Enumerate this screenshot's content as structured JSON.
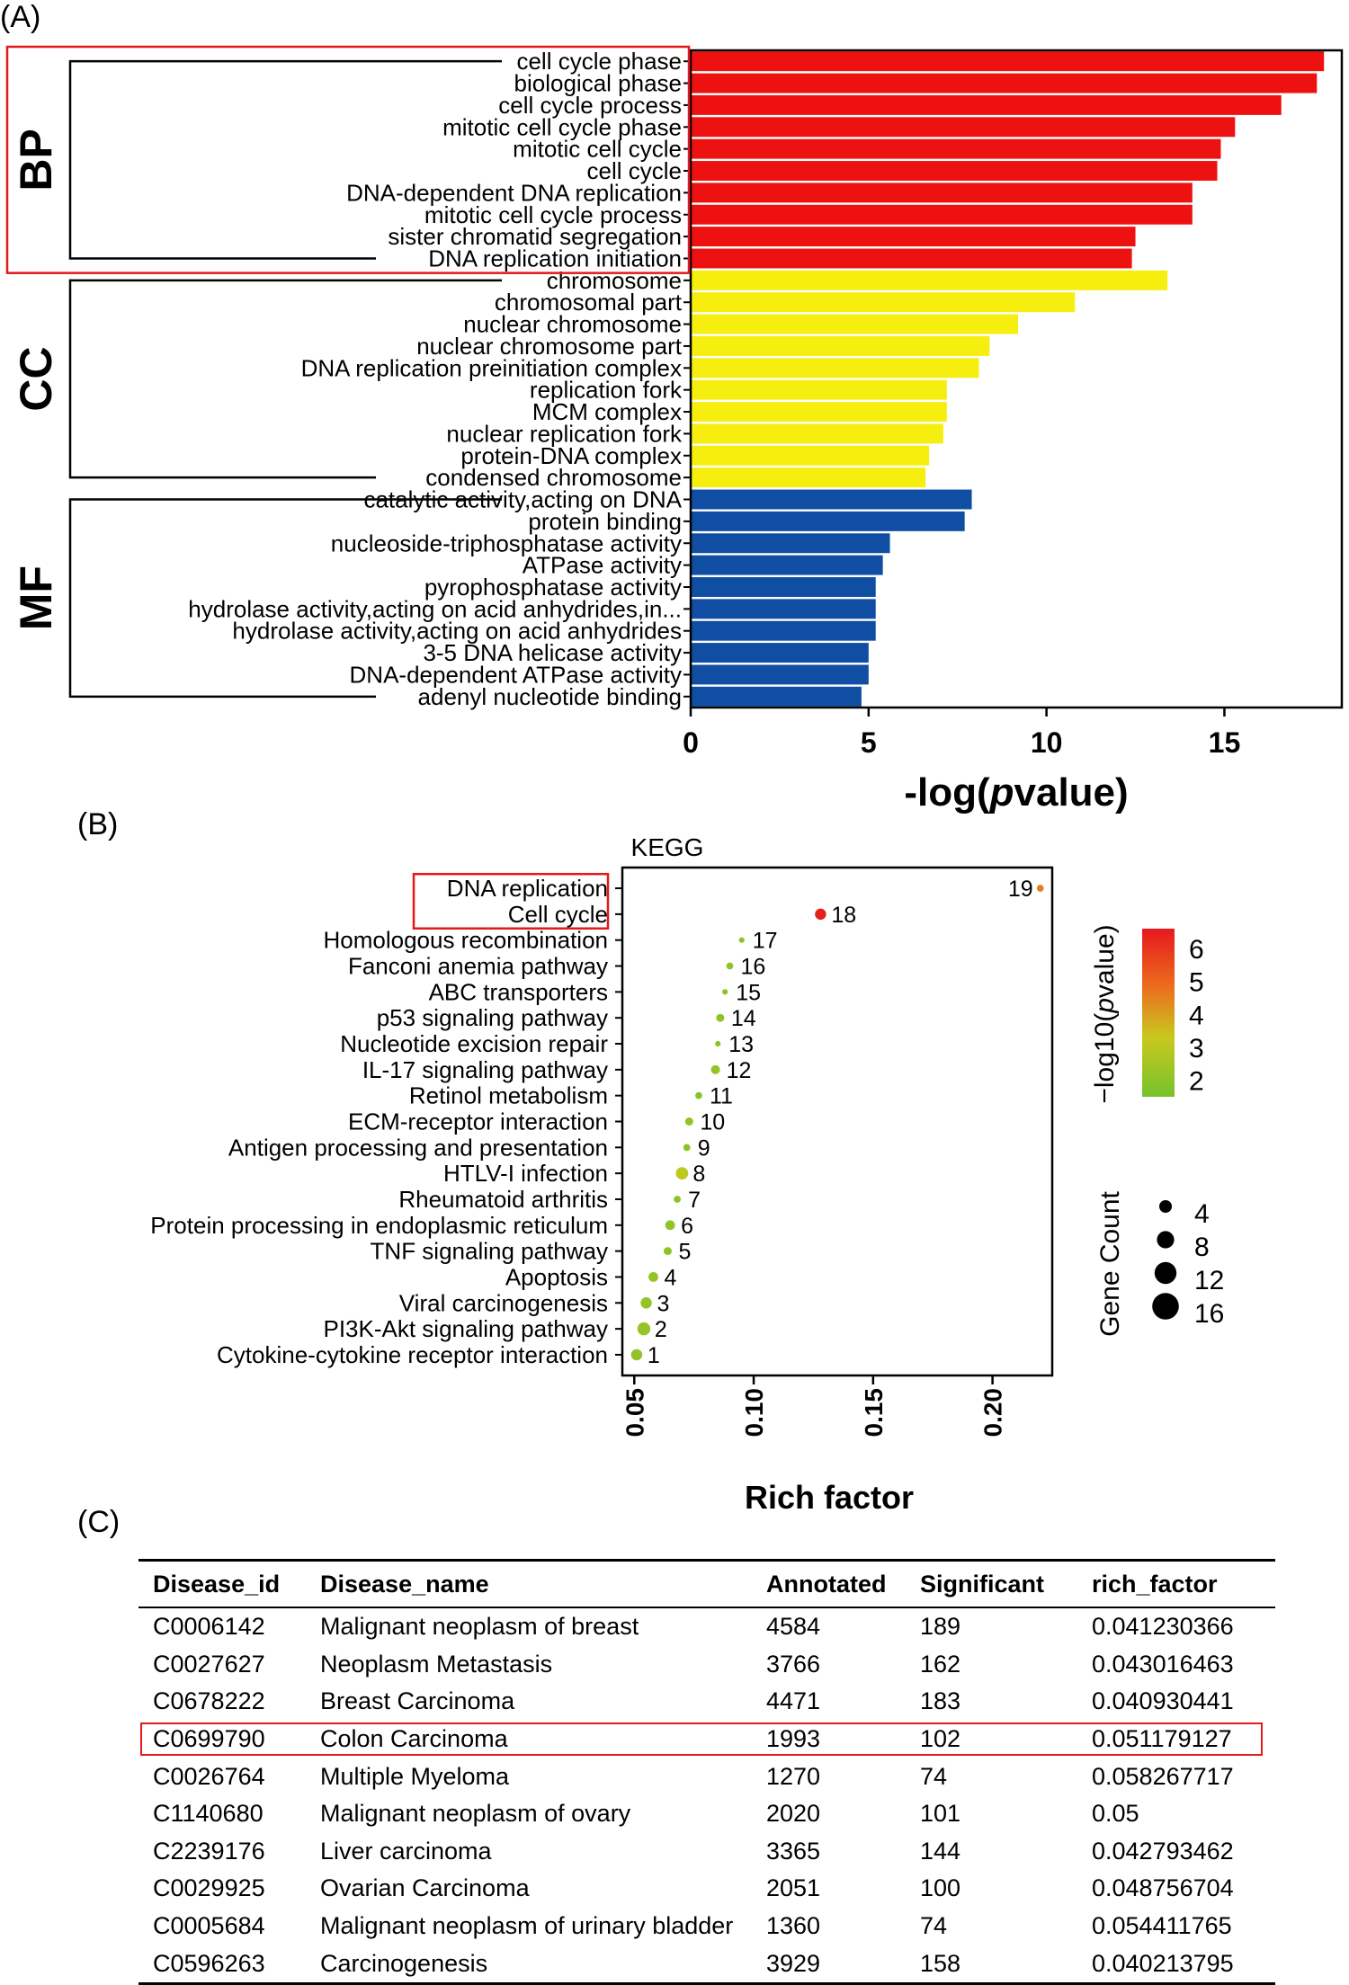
{
  "panel_labels": {
    "a": "(A)",
    "b": "(B)",
    "c": "(C)"
  },
  "chart_data": [
    {
      "type": "bar",
      "orientation": "horizontal",
      "title": "",
      "xlabel": "-log(",
      "xlabel_italic": "p",
      "xlabel_suffix": "value)",
      "xlim": [
        0,
        18.3
      ],
      "xticks": [
        0,
        5,
        10,
        15
      ],
      "highlighted_group": "BP",
      "groups": [
        {
          "name": "BP",
          "color": "#ee1111",
          "categories": [
            {
              "label": "cell cycle phase",
              "value": 17.8
            },
            {
              "label": "biological phase",
              "value": 17.6
            },
            {
              "label": "cell cycle process",
              "value": 16.6
            },
            {
              "label": "mitotic cell cycle phase",
              "value": 15.3
            },
            {
              "label": "mitotic cell cycle",
              "value": 14.9
            },
            {
              "label": "cell cycle",
              "value": 14.8
            },
            {
              "label": "DNA-dependent DNA replication",
              "value": 14.1
            },
            {
              "label": "mitotic cell cycle process",
              "value": 14.1
            },
            {
              "label": "sister chromatid segregation",
              "value": 12.5
            },
            {
              "label": "DNA replication initiation",
              "value": 12.4
            }
          ]
        },
        {
          "name": "CC",
          "color": "#f5ee0f",
          "categories": [
            {
              "label": "chromosome",
              "value": 13.4
            },
            {
              "label": "chromosomal part",
              "value": 10.8
            },
            {
              "label": "nuclear chromosome",
              "value": 9.2
            },
            {
              "label": "nuclear chromosome part",
              "value": 8.4
            },
            {
              "label": "DNA replication preinitiation complex",
              "value": 8.1
            },
            {
              "label": "replication fork",
              "value": 7.2
            },
            {
              "label": "MCM complex",
              "value": 7.2
            },
            {
              "label": "nuclear replication fork",
              "value": 7.1
            },
            {
              "label": "protein-DNA complex",
              "value": 6.7
            },
            {
              "label": "condensed chromosome",
              "value": 6.6
            }
          ]
        },
        {
          "name": "MF",
          "color": "#0f4ea3",
          "categories": [
            {
              "label": "catalytic activity,acting on DNA",
              "value": 7.9
            },
            {
              "label": "protein binding",
              "value": 7.7
            },
            {
              "label": "nucleoside-triphosphatase activity",
              "value": 5.6
            },
            {
              "label": "ATPase activity",
              "value": 5.4
            },
            {
              "label": "pyrophosphatase activity",
              "value": 5.2
            },
            {
              "label": "hydrolase activity,acting on acid anhydrides,in...",
              "value": 5.2
            },
            {
              "label": "hydrolase activity,acting on acid anhydrides",
              "value": 5.2
            },
            {
              "label": "3-5 DNA helicase activity",
              "value": 5.0
            },
            {
              "label": "DNA-dependent ATPase activity",
              "value": 5.0
            },
            {
              "label": "adenyl nucleotide binding",
              "value": 4.8
            }
          ]
        }
      ]
    },
    {
      "type": "scatter",
      "title": "KEGG",
      "xlabel": "Rich factor",
      "xlim": [
        0.045,
        0.225
      ],
      "xticks": [
        "0.05",
        "0.10",
        "0.15",
        "0.20"
      ],
      "highlighted_terms": [
        "DNA replication",
        "Cell cycle"
      ],
      "color_legend": {
        "title": "−log10(",
        "title_italic": "p",
        "title_suffix": "value)",
        "ticks": [
          "6",
          "5",
          "4",
          "3",
          "2"
        ],
        "min": 1.5,
        "max": 6.6
      },
      "size_legend": {
        "title": "Gene Count",
        "values": [
          4,
          8,
          12,
          16
        ]
      },
      "points": [
        {
          "term": "DNA replication",
          "rank": "19",
          "rich_factor": 0.22,
          "neglog10p": 5.0,
          "gene_count": 2
        },
        {
          "term": "Cell cycle",
          "rank": "18",
          "rich_factor": 0.128,
          "neglog10p": 6.5,
          "gene_count": 7
        },
        {
          "term": "Homologous recombination",
          "rank": "17",
          "rich_factor": 0.095,
          "neglog10p": 2.2,
          "gene_count": 1
        },
        {
          "term": "Fanconi anemia pathway",
          "rank": "16",
          "rich_factor": 0.09,
          "neglog10p": 2.2,
          "gene_count": 2
        },
        {
          "term": "ABC transporters",
          "rank": "15",
          "rich_factor": 0.088,
          "neglog10p": 2.0,
          "gene_count": 1
        },
        {
          "term": "p53 signaling pathway",
          "rank": "14",
          "rich_factor": 0.086,
          "neglog10p": 2.2,
          "gene_count": 3
        },
        {
          "term": "Nucleotide excision repair",
          "rank": "13",
          "rich_factor": 0.085,
          "neglog10p": 2.0,
          "gene_count": 1
        },
        {
          "term": "IL-17 signaling pathway",
          "rank": "12",
          "rich_factor": 0.084,
          "neglog10p": 2.3,
          "gene_count": 4
        },
        {
          "term": "Retinol metabolism",
          "rank": "11",
          "rich_factor": 0.077,
          "neglog10p": 2.0,
          "gene_count": 2
        },
        {
          "term": "ECM-receptor interaction",
          "rank": "10",
          "rich_factor": 0.073,
          "neglog10p": 2.2,
          "gene_count": 3
        },
        {
          "term": "Antigen processing and presentation",
          "rank": "9",
          "rich_factor": 0.072,
          "neglog10p": 2.0,
          "gene_count": 2
        },
        {
          "term": "HTLV-I infection",
          "rank": "8",
          "rich_factor": 0.07,
          "neglog10p": 3.5,
          "gene_count": 9
        },
        {
          "term": "Rheumatoid arthritis",
          "rank": "7",
          "rich_factor": 0.068,
          "neglog10p": 2.0,
          "gene_count": 2
        },
        {
          "term": "Protein processing in endoplasmic reticulum",
          "rank": "6",
          "rich_factor": 0.065,
          "neglog10p": 2.3,
          "gene_count": 5
        },
        {
          "term": "TNF signaling pathway",
          "rank": "5",
          "rich_factor": 0.064,
          "neglog10p": 2.2,
          "gene_count": 3
        },
        {
          "term": "Apoptosis",
          "rank": "4",
          "rich_factor": 0.058,
          "neglog10p": 2.3,
          "gene_count": 5
        },
        {
          "term": "Viral carcinogenesis",
          "rank": "3",
          "rich_factor": 0.055,
          "neglog10p": 2.3,
          "gene_count": 7
        },
        {
          "term": "PI3K-Akt signaling pathway",
          "rank": "2",
          "rich_factor": 0.054,
          "neglog10p": 2.4,
          "gene_count": 10
        },
        {
          "term": "Cytokine-cytokine receptor interaction",
          "rank": "1",
          "rich_factor": 0.051,
          "neglog10p": 2.3,
          "gene_count": 7
        }
      ]
    },
    {
      "type": "table",
      "columns": [
        "Disease_id",
        "Disease_name",
        "Annotated",
        "Significant",
        "rich_factor"
      ],
      "highlighted_row": 3,
      "rows": [
        [
          "C0006142",
          "Malignant neoplasm of breast",
          "4584",
          "189",
          "0.041230366"
        ],
        [
          "C0027627",
          "Neoplasm Metastasis",
          "3766",
          "162",
          "0.043016463"
        ],
        [
          "C0678222",
          "Breast Carcinoma",
          "4471",
          "183",
          "0.040930441"
        ],
        [
          "C0699790",
          "Colon Carcinoma",
          "1993",
          "102",
          "0.051179127"
        ],
        [
          "C0026764",
          "Multiple Myeloma",
          "1270",
          "74",
          "0.058267717"
        ],
        [
          "C1140680",
          "Malignant neoplasm of ovary",
          "2020",
          "101",
          "0.05"
        ],
        [
          "C2239176",
          "Liver carcinoma",
          "3365",
          "144",
          "0.042793462"
        ],
        [
          "C0029925",
          "Ovarian Carcinoma",
          "2051",
          "100",
          "0.048756704"
        ],
        [
          "C0005684",
          "Malignant neoplasm of urinary bladder",
          "1360",
          "74",
          "0.054411765"
        ],
        [
          "C0596263",
          "Carcinogenesis",
          "3929",
          "158",
          "0.040213795"
        ]
      ]
    }
  ]
}
